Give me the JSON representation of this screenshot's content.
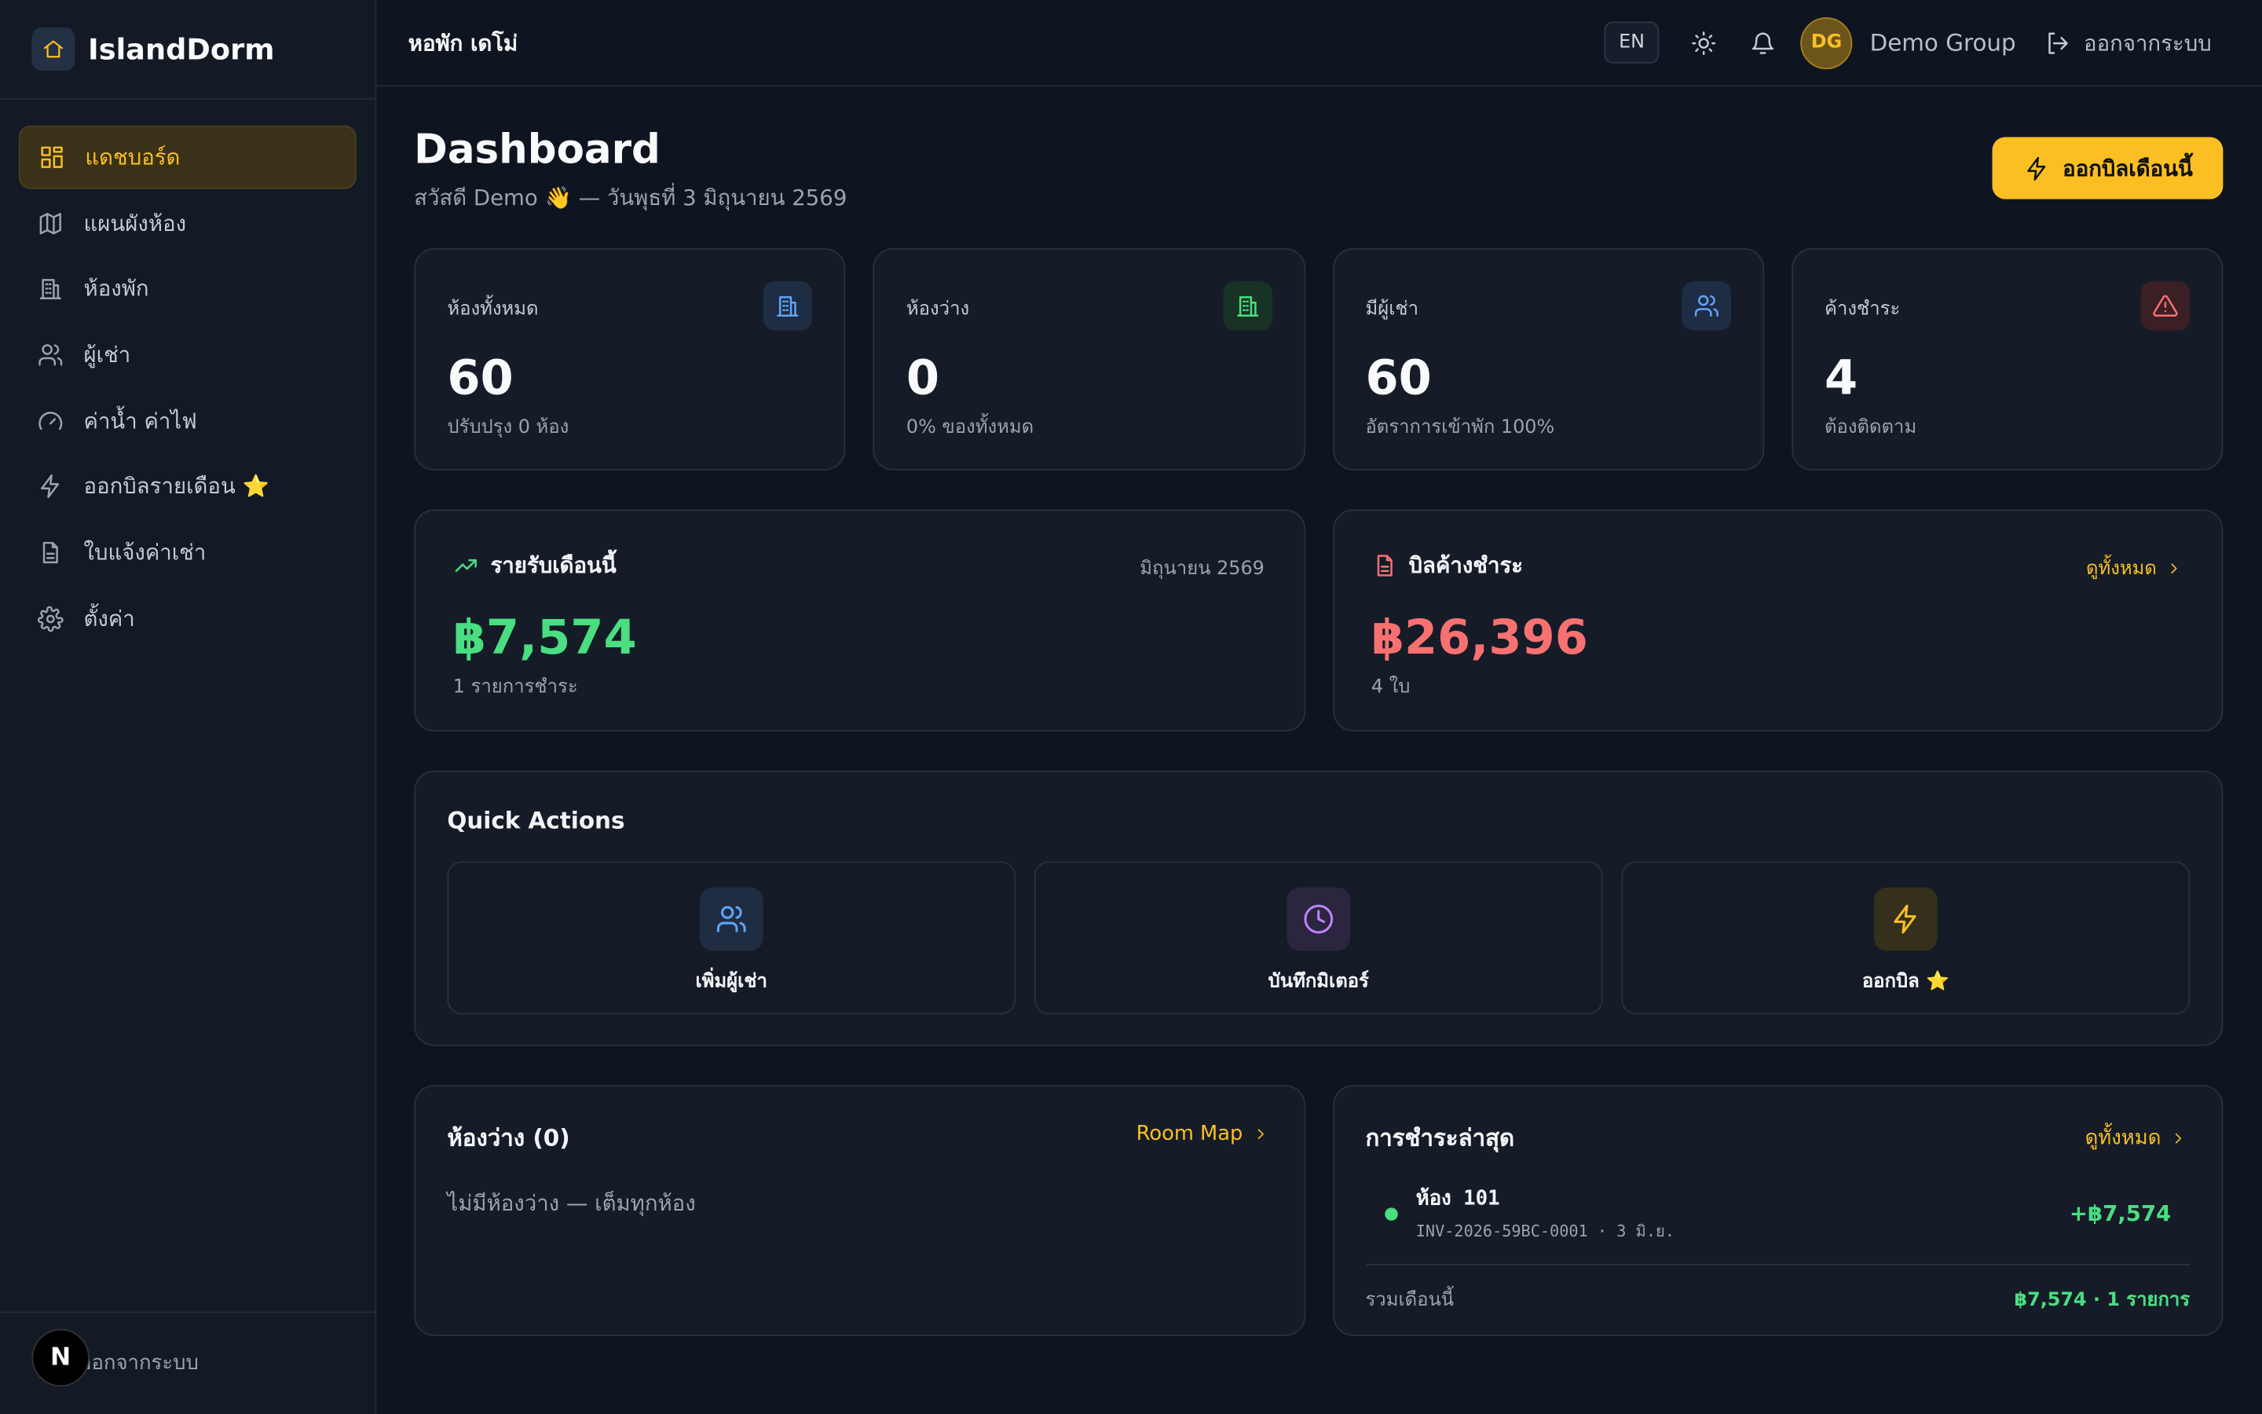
{
  "sidebar": {
    "brand": "IslandDorm",
    "nav": [
      "แดชบอร์ด",
      "แผนผังห้อง",
      "ห้องพัก",
      "ผู้เช่า",
      "ค่าน้ำ ค่าไฟ",
      "ออกบิลรายเดือน ⭐",
      "ใบแจ้งค่าเช่า",
      "ตั้งค่า"
    ],
    "logout": "ออกจากระบบ",
    "dev_badge": "N"
  },
  "topbar": {
    "dorm_name": "หอพัก เดโม่",
    "lang": "EN",
    "avatar": "DG",
    "user": "Demo Group",
    "logout": "ออกจากระบบ"
  },
  "header": {
    "title": "Dashboard",
    "subtitle": "สวัสดี Demo 👋 — วันพุธที่ 3 มิถุนายน 2569",
    "action": "ออกบิลเดือนนี้"
  },
  "stats": [
    {
      "label": "ห้องทั้งหมด",
      "value": 60,
      "note": "ปรับปรุง 0 ห้อง"
    },
    {
      "label": "ห้องว่าง",
      "value": 0,
      "note": "0% ของทั้งหมด"
    },
    {
      "label": "มีผู้เช่า",
      "value": 60,
      "note": "อัตราการเข้าพัก 100%"
    },
    {
      "label": "ค้างชำระ",
      "value": 4,
      "note": "ต้องติดตาม"
    }
  ],
  "income": {
    "title": "รายรับเดือนนี้",
    "period": "มิถุนายน 2569",
    "amount": "฿7,574",
    "note": "1 รายการชำระ"
  },
  "outstanding": {
    "title": "บิลค้างชำระ",
    "link": "ดูทั้งหมด",
    "amount": "฿26,396",
    "note": "4 ใบ"
  },
  "quick_actions": {
    "title": "Quick Actions",
    "items": [
      "เพิ่มผู้เช่า",
      "บันทึกมิเตอร์",
      "ออกบิล ⭐"
    ]
  },
  "vacant": {
    "title": "ห้องว่าง (0)",
    "link": "Room Map",
    "empty": "ไม่มีห้องว่าง — เต็มทุกห้อง"
  },
  "payments": {
    "title": "การชำระล่าสุด",
    "link": "ดูทั้งหมด",
    "items": [
      {
        "room": "ห้อง 101",
        "ref": "INV-2026-59BC-0001 · 3 มิ.ย.",
        "amount": "+฿7,574"
      }
    ],
    "total_label": "รวมเดือนนี้",
    "total": "฿7,574 · 1 รายการ"
  }
}
